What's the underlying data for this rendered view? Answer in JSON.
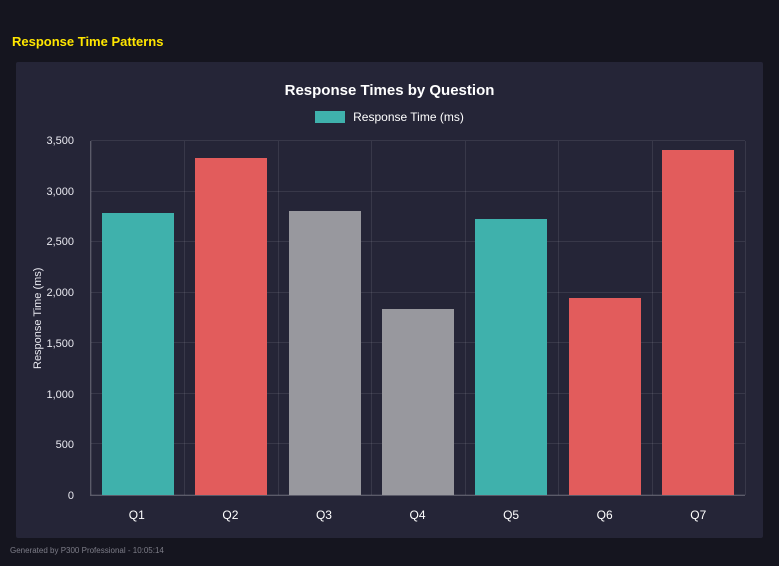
{
  "page": {
    "heading": "Response Time Patterns",
    "footer": "Generated by P300 Professional - 10:05:14"
  },
  "colors": {
    "page_background": "#15151f",
    "panel_background": "#252537",
    "heading_yellow": "#ffe600",
    "teal": "#3fb1ac",
    "red": "#e25c5c",
    "gray": "#98989e",
    "text_white": "#ffffff"
  },
  "chart_data": {
    "type": "bar",
    "title": "Response Times by Question",
    "legend": [
      {
        "label": "Response Time (ms)",
        "color": "#3fb1ac"
      }
    ],
    "legend_position": "top",
    "categories": [
      "Q1",
      "Q2",
      "Q3",
      "Q4",
      "Q5",
      "Q6",
      "Q7"
    ],
    "values": [
      2790,
      3330,
      2805,
      1840,
      2730,
      1950,
      3410
    ],
    "bar_colors": [
      "#3fb1ac",
      "#e25c5c",
      "#98989e",
      "#98989e",
      "#3fb1ac",
      "#e25c5c",
      "#e25c5c"
    ],
    "xlabel": "",
    "ylabel": "Response Time (ms)",
    "ylim": [
      0,
      3500
    ],
    "yticks": [
      0,
      500,
      1000,
      1500,
      2000,
      2500,
      3000,
      3500
    ],
    "ytick_labels": [
      "0",
      "500",
      "1,000",
      "1,500",
      "2,000",
      "2,500",
      "3,000",
      "3,500"
    ],
    "grid": true
  }
}
